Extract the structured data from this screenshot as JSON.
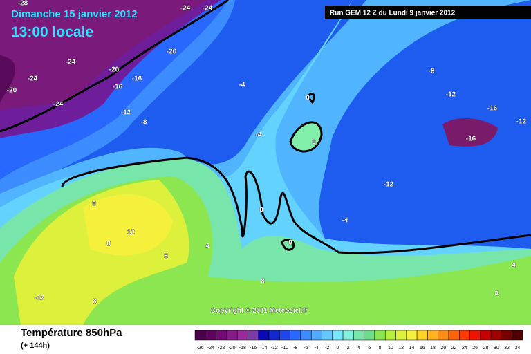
{
  "header": {
    "date": "Dimanche 15 janvier 2012",
    "time": "13:00 locale"
  },
  "run": "Run GEM 12 Z du Lundi 9 janvier 2012",
  "copyright": "Copyright © 2011 Meteociel.fr",
  "footer": {
    "title": "Température 850hPa",
    "subtitle": "(+ 144h)"
  },
  "contour_labels": [
    -28,
    -24,
    -24,
    -24,
    -20,
    -20,
    -24,
    -16,
    -16,
    -20,
    -24,
    -12,
    -8,
    -4,
    0,
    -4,
    0,
    -8,
    -12,
    -16,
    -12,
    -16,
    -12,
    -4,
    0,
    0,
    8,
    12,
    8,
    4,
    8,
    8,
    -12,
    8,
    4,
    4
  ],
  "legend": {
    "labels": [
      -26,
      -24,
      -22,
      -20,
      -18,
      -16,
      -14,
      -12,
      -10,
      -8,
      -6,
      -4,
      -2,
      0,
      2,
      4,
      6,
      8,
      10,
      12,
      14,
      16,
      18,
      20,
      22,
      24,
      26,
      28,
      30,
      32,
      34
    ],
    "colors": [
      "#4a004a",
      "#5e005e",
      "#720a72",
      "#861a86",
      "#9a2a9a",
      "#7a3ca8",
      "#0a0ab4",
      "#1428d2",
      "#1e46ec",
      "#2868ff",
      "#3c8cff",
      "#50aaff",
      "#64c8ff",
      "#78e6ff",
      "#82f0dc",
      "#78e6aa",
      "#6edc8c",
      "#8ce650",
      "#b4f03c",
      "#dcf03c",
      "#f5f03c",
      "#ffd228",
      "#ffb41e",
      "#ff8c14",
      "#ff640a",
      "#ff3c00",
      "#f01400",
      "#c80000",
      "#a00000",
      "#780000",
      "#500000"
    ]
  }
}
